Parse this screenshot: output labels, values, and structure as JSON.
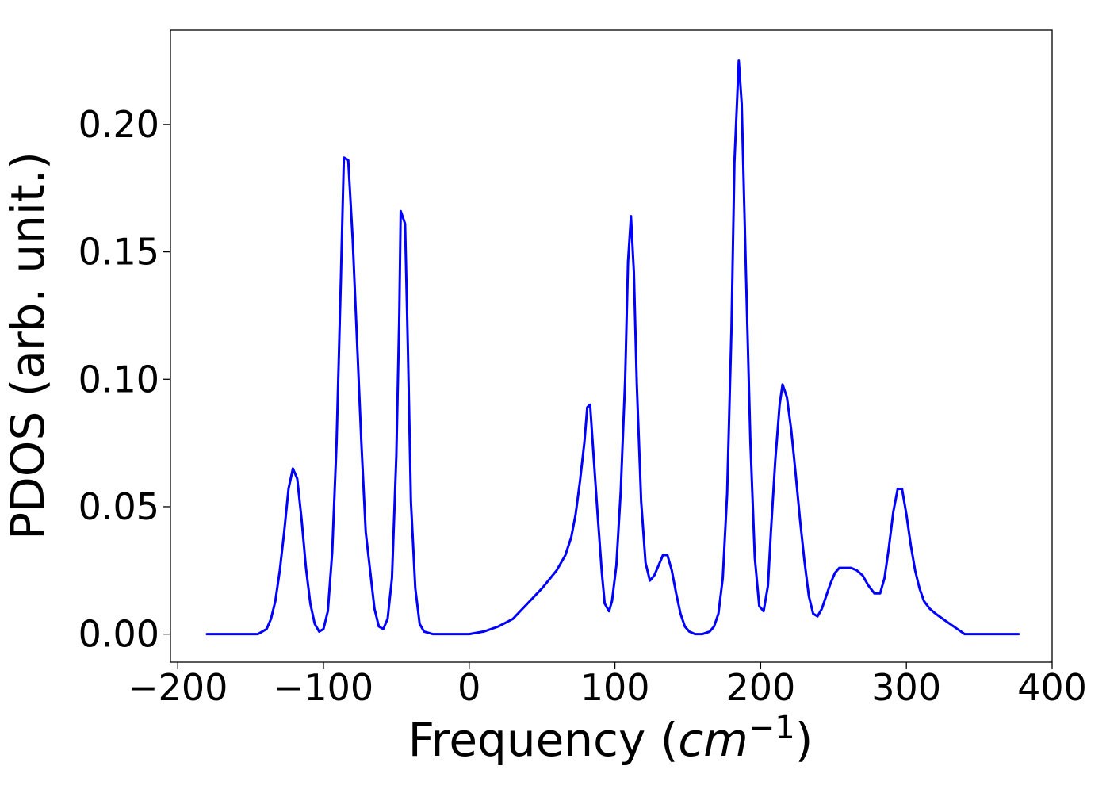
{
  "chart_data": {
    "type": "line",
    "xlabel": "Frequency (cm⁻¹)",
    "xlabel_parts": {
      "prefix": "Frequency (",
      "math_base": "cm",
      "math_superscript": "−1",
      "suffix": ")"
    },
    "ylabel": "PDOS (arb. unit.)",
    "xlim": [
      -205,
      400
    ],
    "ylim": [
      -0.011,
      0.237
    ],
    "grid": false,
    "legend": "none",
    "line_color": "#0000ff",
    "x_ticks": [
      {
        "value": -200,
        "label": "−200"
      },
      {
        "value": -100,
        "label": "−100"
      },
      {
        "value": 0,
        "label": "0"
      },
      {
        "value": 100,
        "label": "100"
      },
      {
        "value": 200,
        "label": "200"
      },
      {
        "value": 300,
        "label": "300"
      },
      {
        "value": 400,
        "label": "400"
      }
    ],
    "y_ticks": [
      {
        "value": 0.0,
        "label": "0.00"
      },
      {
        "value": 0.05,
        "label": "0.05"
      },
      {
        "value": 0.1,
        "label": "0.10"
      },
      {
        "value": 0.15,
        "label": "0.15"
      },
      {
        "value": 0.2,
        "label": "0.20"
      }
    ],
    "series": [
      {
        "points": [
          [
            -180,
            0.0
          ],
          [
            -164,
            0.0
          ],
          [
            -150,
            0.0
          ],
          [
            -145,
            0.0
          ],
          [
            -142,
            0.001
          ],
          [
            -139,
            0.002
          ],
          [
            -136,
            0.006
          ],
          [
            -133,
            0.013
          ],
          [
            -130,
            0.025
          ],
          [
            -127,
            0.04
          ],
          [
            -124,
            0.057
          ],
          [
            -121,
            0.065
          ],
          [
            -118,
            0.061
          ],
          [
            -115,
            0.045
          ],
          [
            -112,
            0.026
          ],
          [
            -109,
            0.012
          ],
          [
            -106,
            0.004
          ],
          [
            -103,
            0.001
          ],
          [
            -100,
            0.002
          ],
          [
            -97,
            0.009
          ],
          [
            -94,
            0.032
          ],
          [
            -91,
            0.075
          ],
          [
            -88,
            0.14
          ],
          [
            -86,
            0.187
          ],
          [
            -83,
            0.186
          ],
          [
            -80,
            0.155
          ],
          [
            -77,
            0.115
          ],
          [
            -74,
            0.075
          ],
          [
            -71,
            0.04
          ],
          [
            -68,
            0.025
          ],
          [
            -65,
            0.01
          ],
          [
            -62,
            0.003
          ],
          [
            -59,
            0.002
          ],
          [
            -56,
            0.006
          ],
          [
            -53,
            0.022
          ],
          [
            -50,
            0.07
          ],
          [
            -48,
            0.125
          ],
          [
            -47,
            0.166
          ],
          [
            -44,
            0.161
          ],
          [
            -42,
            0.11
          ],
          [
            -40,
            0.052
          ],
          [
            -37,
            0.018
          ],
          [
            -34,
            0.004
          ],
          [
            -31,
            0.001
          ],
          [
            -25,
            0.0
          ],
          [
            0,
            0.0
          ],
          [
            10,
            0.001
          ],
          [
            20,
            0.003
          ],
          [
            30,
            0.006
          ],
          [
            40,
            0.012
          ],
          [
            50,
            0.018
          ],
          [
            60,
            0.025
          ],
          [
            66,
            0.031
          ],
          [
            70,
            0.038
          ],
          [
            73,
            0.047
          ],
          [
            76,
            0.06
          ],
          [
            79,
            0.075
          ],
          [
            81,
            0.089
          ],
          [
            83,
            0.09
          ],
          [
            85,
            0.073
          ],
          [
            88,
            0.048
          ],
          [
            91,
            0.024
          ],
          [
            93,
            0.012
          ],
          [
            96,
            0.009
          ],
          [
            98,
            0.013
          ],
          [
            101,
            0.027
          ],
          [
            104,
            0.056
          ],
          [
            107,
            0.1
          ],
          [
            109,
            0.146
          ],
          [
            111,
            0.164
          ],
          [
            113,
            0.142
          ],
          [
            115,
            0.098
          ],
          [
            118,
            0.052
          ],
          [
            121,
            0.028
          ],
          [
            124,
            0.021
          ],
          [
            127,
            0.023
          ],
          [
            130,
            0.027
          ],
          [
            133,
            0.031
          ],
          [
            136,
            0.031
          ],
          [
            139,
            0.025
          ],
          [
            142,
            0.016
          ],
          [
            145,
            0.008
          ],
          [
            148,
            0.003
          ],
          [
            151,
            0.001
          ],
          [
            155,
            0.0
          ],
          [
            160,
            0.0
          ],
          [
            165,
            0.001
          ],
          [
            168,
            0.003
          ],
          [
            171,
            0.008
          ],
          [
            174,
            0.022
          ],
          [
            177,
            0.055
          ],
          [
            180,
            0.12
          ],
          [
            182,
            0.185
          ],
          [
            185,
            0.225
          ],
          [
            187,
            0.208
          ],
          [
            190,
            0.14
          ],
          [
            193,
            0.075
          ],
          [
            196,
            0.03
          ],
          [
            199,
            0.011
          ],
          [
            202,
            0.009
          ],
          [
            205,
            0.019
          ],
          [
            207,
            0.04
          ],
          [
            210,
            0.068
          ],
          [
            213,
            0.09
          ],
          [
            215,
            0.098
          ],
          [
            218,
            0.093
          ],
          [
            221,
            0.08
          ],
          [
            224,
            0.063
          ],
          [
            227,
            0.045
          ],
          [
            230,
            0.029
          ],
          [
            233,
            0.015
          ],
          [
            236,
            0.008
          ],
          [
            239,
            0.007
          ],
          [
            242,
            0.01
          ],
          [
            245,
            0.015
          ],
          [
            248,
            0.02
          ],
          [
            251,
            0.024
          ],
          [
            254,
            0.026
          ],
          [
            258,
            0.026
          ],
          [
            262,
            0.026
          ],
          [
            266,
            0.025
          ],
          [
            270,
            0.023
          ],
          [
            274,
            0.019
          ],
          [
            278,
            0.016
          ],
          [
            282,
            0.016
          ],
          [
            285,
            0.022
          ],
          [
            288,
            0.034
          ],
          [
            291,
            0.048
          ],
          [
            294,
            0.057
          ],
          [
            297,
            0.057
          ],
          [
            300,
            0.047
          ],
          [
            303,
            0.035
          ],
          [
            306,
            0.025
          ],
          [
            309,
            0.018
          ],
          [
            312,
            0.013
          ],
          [
            316,
            0.01
          ],
          [
            320,
            0.008
          ],
          [
            325,
            0.006
          ],
          [
            330,
            0.004
          ],
          [
            335,
            0.002
          ],
          [
            340,
            0.0
          ],
          [
            350,
            0.0
          ],
          [
            360,
            0.0
          ],
          [
            370,
            0.0
          ],
          [
            377,
            0.0
          ]
        ]
      }
    ]
  }
}
